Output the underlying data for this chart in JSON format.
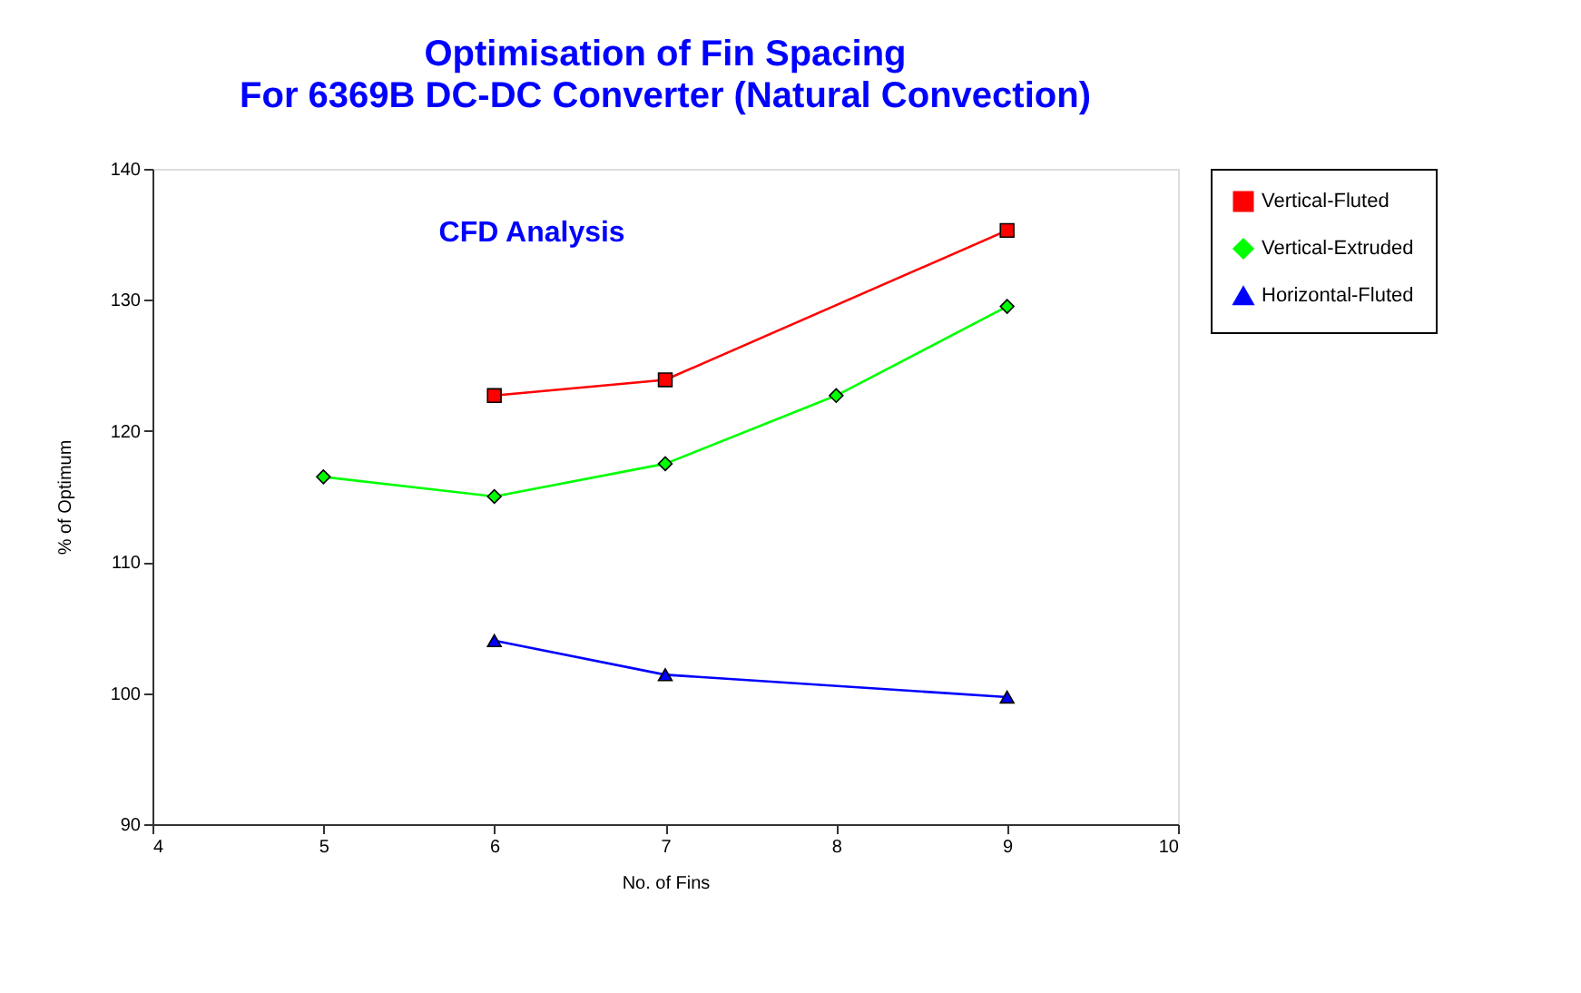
{
  "chart_data": {
    "type": "line",
    "title": "Optimisation of Fin Spacing",
    "subtitle": "For 6369B DC-DC Converter (Natural Convection)",
    "xlabel": "No. of Fins",
    "ylabel": "% of Optimum",
    "annotations": [
      "CFD Analysis"
    ],
    "series": [
      {
        "name": "Vertical-Fluted",
        "color": "#ff0000",
        "marker": "square",
        "x": [
          6,
          7,
          9
        ],
        "values": [
          122.7,
          123.9,
          135.3
        ]
      },
      {
        "name": "Vertical-Extruded",
        "color": "#00ff00",
        "marker": "diamond",
        "x": [
          5,
          6,
          7,
          8,
          9
        ],
        "values": [
          116.5,
          115.0,
          117.5,
          122.7,
          129.5
        ]
      },
      {
        "name": "Horizontal-Fluted",
        "color": "#0000ff",
        "marker": "triangle",
        "x": [
          6,
          7,
          9
        ],
        "values": [
          104.0,
          101.4,
          99.7
        ]
      }
    ],
    "xlim": [
      4,
      10
    ],
    "xticks": [
      4,
      5,
      6,
      7,
      8,
      9,
      10
    ],
    "ylim": [
      90,
      140
    ],
    "yticks": [
      90,
      100,
      110,
      120,
      130,
      140
    ],
    "grid": false,
    "legend": "right",
    "line_style": "solid"
  }
}
